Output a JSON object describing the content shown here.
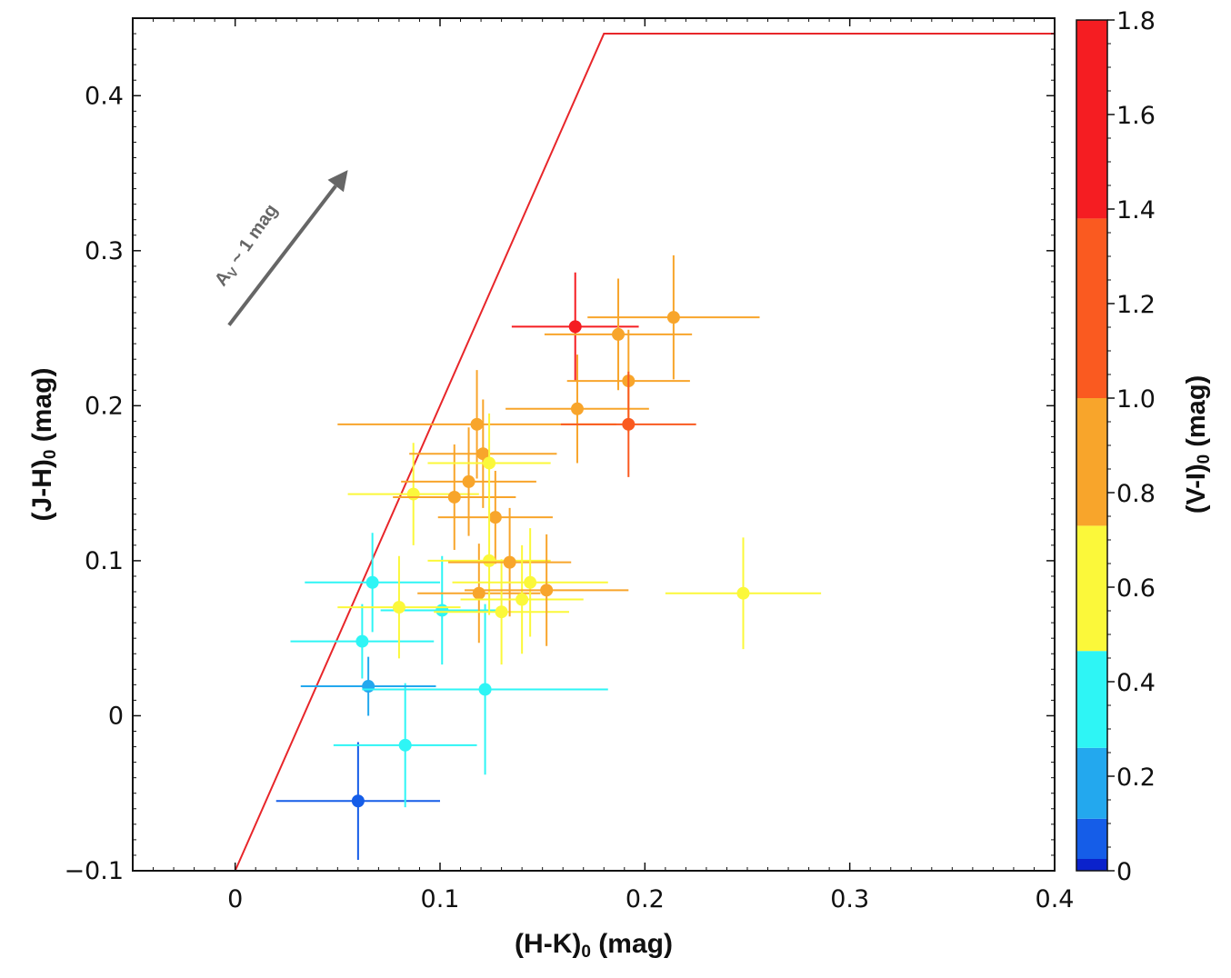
{
  "chart_data": {
    "type": "scatter",
    "title": "",
    "xlabel_main": "(H-K)",
    "xlabel_sub": "0",
    "xlabel_unit": " (mag)",
    "ylabel_main": "(J-H)",
    "ylabel_sub": "0",
    "ylabel_unit": " (mag)",
    "xlim": [
      -0.05,
      0.4
    ],
    "ylim": [
      -0.1,
      0.45
    ],
    "xticks": [
      0,
      0.1,
      0.2,
      0.3,
      0.4
    ],
    "xtick_labels": [
      "0",
      "0.1",
      "0.2",
      "0.3",
      "0.4"
    ],
    "yticks": [
      -0.1,
      0,
      0.1,
      0.2,
      0.3,
      0.4
    ],
    "ytick_labels": [
      "−0.1",
      "0",
      "0.1",
      "0.2",
      "0.3",
      "0.4"
    ],
    "grid": false,
    "boundary_line": {
      "color": "#e8262a",
      "points": [
        [
          0,
          -0.1
        ],
        [
          0.18,
          0.44
        ],
        [
          0.4,
          0.44
        ]
      ]
    },
    "annotation": {
      "text_main": "A",
      "text_sub": "V",
      "text_rest": " ~ 1 mag",
      "color": "#666666",
      "arrow_from": [
        -0.003,
        0.252
      ],
      "arrow_to": [
        0.055,
        0.352
      ]
    },
    "colorbar": {
      "label_main": "(V-I)",
      "label_sub": "0",
      "label_unit": " (mag)",
      "range": [
        0,
        1.8
      ],
      "ticks": [
        0,
        0.2,
        0.4,
        0.6,
        0.8,
        1.0,
        1.2,
        1.4,
        1.6,
        1.8
      ],
      "tick_labels": [
        "0",
        "0.2",
        "0.4",
        "0.6",
        "0.8",
        "1.0",
        "1.2",
        "1.4",
        "1.6",
        "1.8"
      ],
      "bins": [
        {
          "from": 0.0,
          "to": 0.025,
          "color": "#0a22cc"
        },
        {
          "from": 0.025,
          "to": 0.11,
          "color": "#155de8"
        },
        {
          "from": 0.11,
          "to": 0.26,
          "color": "#23a8ee"
        },
        {
          "from": 0.26,
          "to": 0.465,
          "color": "#2ef5f5"
        },
        {
          "from": 0.465,
          "to": 0.73,
          "color": "#fbf83a"
        },
        {
          "from": 0.73,
          "to": 1.0,
          "color": "#f8a52b"
        },
        {
          "from": 1.0,
          "to": 1.38,
          "color": "#fa5a20"
        },
        {
          "from": 1.38,
          "to": 1.8,
          "color": "#f51d22"
        }
      ]
    },
    "points": [
      {
        "x": 0.06,
        "y": -0.055,
        "xerr": 0.04,
        "yerr": 0.038,
        "c": 0.1
      },
      {
        "x": 0.083,
        "y": -0.019,
        "xerr": 0.035,
        "yerr": 0.04,
        "c": 0.4
      },
      {
        "x": 0.065,
        "y": 0.019,
        "xerr": 0.033,
        "yerr": 0.019,
        "c": 0.2
      },
      {
        "x": 0.062,
        "y": 0.048,
        "xerr": 0.035,
        "yerr": 0.024,
        "c": 0.4
      },
      {
        "x": 0.067,
        "y": 0.086,
        "xerr": 0.033,
        "yerr": 0.032,
        "c": 0.4
      },
      {
        "x": 0.101,
        "y": 0.068,
        "xerr": 0.03,
        "yerr": 0.035,
        "c": 0.4
      },
      {
        "x": 0.122,
        "y": 0.017,
        "xerr": 0.06,
        "yerr": 0.055,
        "c": 0.4
      },
      {
        "x": 0.08,
        "y": 0.07,
        "xerr": 0.03,
        "yerr": 0.033,
        "c": 0.6
      },
      {
        "x": 0.087,
        "y": 0.143,
        "xerr": 0.032,
        "yerr": 0.033,
        "c": 0.6
      },
      {
        "x": 0.107,
        "y": 0.141,
        "xerr": 0.03,
        "yerr": 0.034,
        "c": 0.8
      },
      {
        "x": 0.114,
        "y": 0.151,
        "xerr": 0.033,
        "yerr": 0.035,
        "c": 0.8
      },
      {
        "x": 0.118,
        "y": 0.188,
        "xerr": 0.068,
        "yerr": 0.035,
        "c": 0.8
      },
      {
        "x": 0.121,
        "y": 0.169,
        "xerr": 0.036,
        "yerr": 0.035,
        "c": 0.8
      },
      {
        "x": 0.124,
        "y": 0.163,
        "xerr": 0.03,
        "yerr": 0.032,
        "c": 0.6
      },
      {
        "x": 0.127,
        "y": 0.128,
        "xerr": 0.028,
        "yerr": 0.03,
        "c": 0.8
      },
      {
        "x": 0.119,
        "y": 0.079,
        "xerr": 0.03,
        "yerr": 0.032,
        "c": 0.8
      },
      {
        "x": 0.124,
        "y": 0.1,
        "xerr": 0.03,
        "yerr": 0.035,
        "c": 0.6
      },
      {
        "x": 0.13,
        "y": 0.067,
        "xerr": 0.033,
        "yerr": 0.034,
        "c": 0.6
      },
      {
        "x": 0.134,
        "y": 0.099,
        "xerr": 0.03,
        "yerr": 0.035,
        "c": 0.8
      },
      {
        "x": 0.14,
        "y": 0.075,
        "xerr": 0.03,
        "yerr": 0.035,
        "c": 0.6
      },
      {
        "x": 0.144,
        "y": 0.086,
        "xerr": 0.038,
        "yerr": 0.035,
        "c": 0.6
      },
      {
        "x": 0.152,
        "y": 0.081,
        "xerr": 0.04,
        "yerr": 0.036,
        "c": 0.8
      },
      {
        "x": 0.248,
        "y": 0.079,
        "xerr": 0.038,
        "yerr": 0.036,
        "c": 0.6
      },
      {
        "x": 0.167,
        "y": 0.198,
        "xerr": 0.035,
        "yerr": 0.035,
        "c": 0.8
      },
      {
        "x": 0.166,
        "y": 0.251,
        "xerr": 0.031,
        "yerr": 0.035,
        "c": 1.5
      },
      {
        "x": 0.187,
        "y": 0.246,
        "xerr": 0.036,
        "yerr": 0.036,
        "c": 0.8
      },
      {
        "x": 0.192,
        "y": 0.216,
        "xerr": 0.03,
        "yerr": 0.033,
        "c": 0.8
      },
      {
        "x": 0.192,
        "y": 0.188,
        "xerr": 0.033,
        "yerr": 0.034,
        "c": 1.2
      },
      {
        "x": 0.214,
        "y": 0.257,
        "xerr": 0.042,
        "yerr": 0.04,
        "c": 0.8
      }
    ]
  }
}
